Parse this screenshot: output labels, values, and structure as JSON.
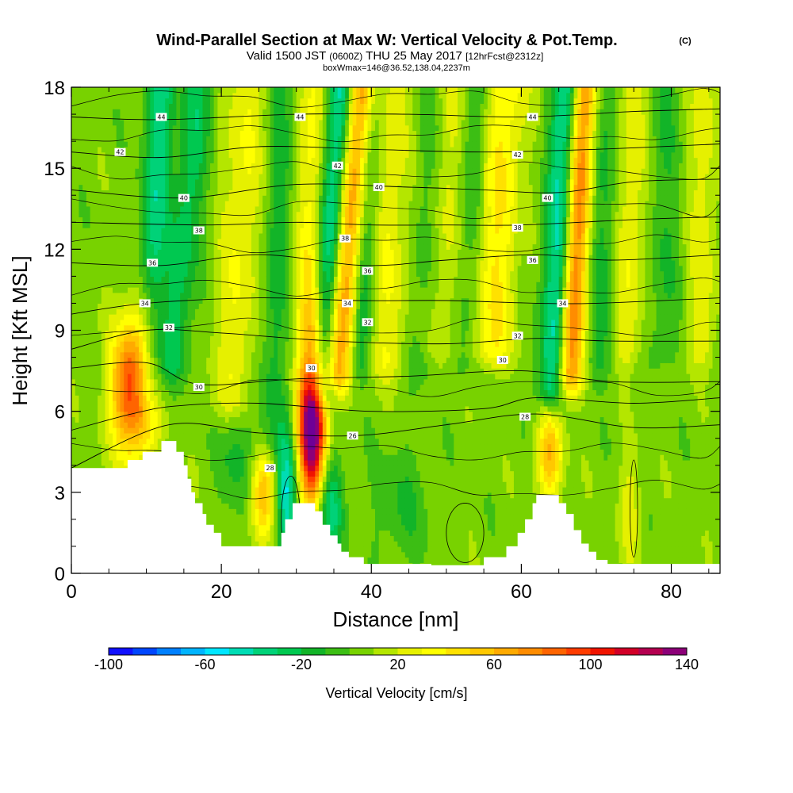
{
  "chart_data": {
    "type": "heatmap",
    "title": "Wind-Parallel Section at Max W: Vertical Velocity & Pot.Temp.",
    "title_mark": "(C)",
    "subtitle": {
      "valid": "Valid 1500 JST",
      "z": "(0600Z)",
      "date": "THU 25 May 2017",
      "fcst": "[12hrFcst@2312z]"
    },
    "subtitle2": "boxWmax=146@36.52,138.04,2237m",
    "xlabel": "Distance [nm]",
    "ylabel": "Height [Kft MSL]",
    "xlim": [
      0,
      86.5
    ],
    "ylim": [
      0,
      18
    ],
    "x_ticks": [
      "0",
      "20",
      "40",
      "60",
      "80"
    ],
    "x_tick_values": [
      0,
      20,
      40,
      60,
      80
    ],
    "y_ticks": [
      "0",
      "3",
      "6",
      "9",
      "12",
      "15",
      "18"
    ],
    "y_tick_values": [
      0,
      3,
      6,
      9,
      12,
      15,
      18
    ],
    "colorbar": {
      "label": "Vertical Velocity [cm/s]",
      "min": -100,
      "max": 140,
      "step": 10,
      "tick_labels": [
        "-100",
        "-60",
        "-20",
        "20",
        "60",
        "100",
        "140"
      ],
      "tick_values": [
        -100,
        -60,
        -20,
        20,
        60,
        100,
        140
      ],
      "colors": [
        "#1010ff",
        "#0046ff",
        "#0080ff",
        "#00b4ff",
        "#00e6ff",
        "#00dcb4",
        "#00d278",
        "#00c850",
        "#12b428",
        "#3cbe14",
        "#78d200",
        "#b4e600",
        "#e6f000",
        "#ffff00",
        "#ffe100",
        "#ffc800",
        "#ffaa00",
        "#ff8c00",
        "#ff6400",
        "#ff3c00",
        "#f01400",
        "#d20028",
        "#b40050",
        "#8c0078",
        "#6e0096"
      ]
    },
    "terrain_kft": [
      [
        0,
        3.9
      ],
      [
        7.5,
        3.9
      ],
      [
        7.5,
        4.2
      ],
      [
        9.5,
        4.2
      ],
      [
        9.5,
        4.5
      ],
      [
        12,
        4.5
      ],
      [
        12,
        4.9
      ],
      [
        14,
        4.9
      ],
      [
        14,
        4.5
      ],
      [
        15,
        4.5
      ],
      [
        15,
        4.0
      ],
      [
        15.5,
        4.0
      ],
      [
        15.5,
        3.5
      ],
      [
        16,
        3.5
      ],
      [
        16,
        3.0
      ],
      [
        16.5,
        3.0
      ],
      [
        16.5,
        2.6
      ],
      [
        17.5,
        2.6
      ],
      [
        17.5,
        2.2
      ],
      [
        18,
        2.2
      ],
      [
        18,
        1.8
      ],
      [
        19,
        1.8
      ],
      [
        19,
        1.5
      ],
      [
        20,
        1.5
      ],
      [
        20,
        1.0
      ],
      [
        28,
        1.0
      ],
      [
        28,
        1.5
      ],
      [
        28.5,
        1.5
      ],
      [
        28.5,
        2.0
      ],
      [
        29.5,
        2.0
      ],
      [
        29.5,
        2.6
      ],
      [
        32.5,
        2.6
      ],
      [
        32.5,
        2.3
      ],
      [
        33.5,
        2.3
      ],
      [
        33.5,
        1.8
      ],
      [
        34.5,
        1.8
      ],
      [
        34.5,
        1.4
      ],
      [
        35.5,
        1.4
      ],
      [
        35.5,
        1.1
      ],
      [
        36,
        1.1
      ],
      [
        36,
        0.8
      ],
      [
        37,
        0.8
      ],
      [
        37,
        0.6
      ],
      [
        39,
        0.6
      ],
      [
        39,
        0.35
      ],
      [
        48,
        0.35
      ],
      [
        48,
        0.3
      ],
      [
        55,
        0.3
      ],
      [
        55,
        0.6
      ],
      [
        58,
        0.6
      ],
      [
        58,
        1.0
      ],
      [
        59.5,
        1.0
      ],
      [
        59.5,
        1.5
      ],
      [
        60.5,
        1.5
      ],
      [
        60.5,
        2.0
      ],
      [
        61.5,
        2.0
      ],
      [
        61.5,
        2.6
      ],
      [
        62,
        2.6
      ],
      [
        62,
        2.9
      ],
      [
        65,
        2.9
      ],
      [
        65,
        2.6
      ],
      [
        66,
        2.6
      ],
      [
        66,
        2.2
      ],
      [
        67,
        2.2
      ],
      [
        67,
        1.6
      ],
      [
        68,
        1.6
      ],
      [
        68,
        1.1
      ],
      [
        69,
        1.1
      ],
      [
        69,
        0.8
      ],
      [
        70,
        0.8
      ],
      [
        70,
        0.5
      ],
      [
        71.5,
        0.5
      ],
      [
        71.5,
        0.35
      ],
      [
        86.5,
        0.35
      ],
      [
        86.5,
        0
      ]
    ],
    "updrafts": [
      {
        "x": 8.2,
        "y": 6.8,
        "sx": 2.0,
        "sy": 1.7,
        "amp": 100
      },
      {
        "x": 32.0,
        "y": 5.2,
        "sx": 1.3,
        "sy": 1.8,
        "amp": 140
      },
      {
        "x": 32.5,
        "y": 8.0,
        "sx": 1.4,
        "sy": 2.0,
        "amp": 40
      },
      {
        "x": 25.5,
        "y": 2.8,
        "sx": 1.1,
        "sy": 1.3,
        "amp": 55
      },
      {
        "x": 63.8,
        "y": 4.4,
        "sx": 1.2,
        "sy": 1.2,
        "amp": 55
      },
      {
        "x": 10.0,
        "y": 9.5,
        "sx": 1.5,
        "sy": 1.2,
        "amp": 25
      },
      {
        "x": 74.5,
        "y": 2.4,
        "sx": 1.0,
        "sy": 1.5,
        "amp": 22
      }
    ],
    "downdrafts": [
      {
        "x": 28.7,
        "y": 3.0,
        "sx": 1.0,
        "sy": 1.6,
        "amp": -60
      },
      {
        "x": 34.5,
        "y": 2.5,
        "sx": 1.2,
        "sy": 1.5,
        "amp": -40
      },
      {
        "x": 22.0,
        "y": 4.5,
        "sx": 1.5,
        "sy": 1.6,
        "amp": -20
      },
      {
        "x": 44.0,
        "y": 2.5,
        "sx": 2.5,
        "sy": 1.5,
        "amp": -15
      }
    ],
    "bands": [
      {
        "x0": 10.0,
        "x1": 12.0,
        "y0": 7.0,
        "y1": 18.0,
        "w": 1.3,
        "amp": -40
      },
      {
        "x0": 13.5,
        "x1": 17.0,
        "y0": 8.0,
        "y1": 18.0,
        "w": 1.5,
        "amp": -30
      },
      {
        "x0": 21.5,
        "x1": 23.5,
        "y0": 6.5,
        "y1": 18.0,
        "w": 2.0,
        "amp": 25
      },
      {
        "x0": 26.5,
        "x1": 28.0,
        "y0": 5.0,
        "y1": 18.0,
        "w": 1.3,
        "amp": -20
      },
      {
        "x0": 31.5,
        "x1": 32.5,
        "y0": 9.5,
        "y1": 18.0,
        "w": 1.3,
        "amp": 30
      },
      {
        "x0": 33.5,
        "x1": 36.0,
        "y0": 7.0,
        "y1": 18.0,
        "w": 1.3,
        "amp": -55
      },
      {
        "x0": 35.5,
        "x1": 38.5,
        "y0": 7.5,
        "y1": 18.0,
        "w": 1.3,
        "amp": 70
      },
      {
        "x0": 38.5,
        "x1": 40.5,
        "y0": 8.0,
        "y1": 18.0,
        "w": 1.2,
        "amp": -30
      },
      {
        "x0": 42.0,
        "x1": 42.5,
        "y0": 8.0,
        "y1": 18.0,
        "w": 2.2,
        "amp": 25
      },
      {
        "x0": 46.5,
        "x1": 48.0,
        "y0": 8.0,
        "y1": 18.0,
        "w": 1.5,
        "amp": -18
      },
      {
        "x0": 49.5,
        "x1": 50.5,
        "y0": 8.5,
        "y1": 18.0,
        "w": 2.0,
        "amp": 20
      },
      {
        "x0": 52.0,
        "x1": 54.0,
        "y0": 8.0,
        "y1": 18.0,
        "w": 1.4,
        "amp": -20
      },
      {
        "x0": 56.0,
        "x1": 58.0,
        "y0": 8.5,
        "y1": 18.0,
        "w": 2.0,
        "amp": 35
      },
      {
        "x0": 64.0,
        "x1": 66.0,
        "y0": 7.0,
        "y1": 18.0,
        "w": 1.3,
        "amp": -50
      },
      {
        "x0": 66.5,
        "x1": 68.5,
        "y0": 7.5,
        "y1": 18.0,
        "w": 1.2,
        "amp": 75
      },
      {
        "x0": 70.5,
        "x1": 71.5,
        "y0": 8.0,
        "y1": 18.0,
        "w": 1.5,
        "amp": -20
      },
      {
        "x0": 74.0,
        "x1": 75.0,
        "y0": 8.5,
        "y1": 18.0,
        "w": 1.5,
        "amp": 25
      },
      {
        "x0": 79.0,
        "x1": 79.0,
        "y0": 8.5,
        "y1": 18.0,
        "w": 1.5,
        "amp": -15
      },
      {
        "x0": 84.0,
        "x1": 84.5,
        "y0": 8.5,
        "y1": 18.0,
        "w": 1.5,
        "amp": 20
      }
    ],
    "isentropes": [
      {
        "label": "26",
        "pts": [
          [
            0,
            3.9
          ],
          [
            13,
            5.5
          ],
          [
            25,
            5.2
          ],
          [
            38,
            5.1
          ],
          [
            50,
            5.5
          ],
          [
            62,
            5.9
          ],
          [
            75,
            5.4
          ],
          [
            86.5,
            5.5
          ]
        ]
      },
      {
        "label": "28",
        "pts": [
          [
            0,
            5.3
          ],
          [
            8,
            5.9
          ],
          [
            14,
            6.2
          ],
          [
            25,
            6.3
          ],
          [
            40,
            6.0
          ],
          [
            55,
            6.1
          ],
          [
            62,
            6.5
          ],
          [
            75,
            6.3
          ],
          [
            86.5,
            6.5
          ]
        ]
      },
      {
        "label": "30",
        "pts": [
          [
            0,
            7.6
          ],
          [
            10,
            7.8
          ],
          [
            17,
            7.0
          ],
          [
            30,
            7.2
          ],
          [
            45,
            7.3
          ],
          [
            60,
            7.5
          ],
          [
            72,
            7.1
          ],
          [
            86.5,
            7.1
          ]
        ]
      },
      {
        "label": "32",
        "pts": [
          [
            0,
            8.3
          ],
          [
            10,
            9.0
          ],
          [
            20,
            8.9
          ],
          [
            35,
            8.6
          ],
          [
            50,
            8.5
          ],
          [
            62,
            8.7
          ],
          [
            72,
            8.6
          ],
          [
            86.5,
            8.6
          ]
        ]
      },
      {
        "label": "34",
        "pts": [
          [
            0,
            9.6
          ],
          [
            10,
            10.0
          ],
          [
            25,
            10.2
          ],
          [
            38,
            10.1
          ],
          [
            50,
            10.1
          ],
          [
            62,
            10.0
          ],
          [
            70,
            10.0
          ],
          [
            86.5,
            10.2
          ]
        ]
      },
      {
        "label": "36",
        "pts": [
          [
            0,
            11.5
          ],
          [
            12,
            11.4
          ],
          [
            25,
            11.8
          ],
          [
            39,
            11.4
          ],
          [
            50,
            11.6
          ],
          [
            62,
            11.8
          ],
          [
            72,
            11.6
          ],
          [
            86.5,
            11.8
          ]
        ]
      },
      {
        "label": "38",
        "pts": [
          [
            0,
            13.0
          ],
          [
            18,
            12.9
          ],
          [
            30,
            13.0
          ],
          [
            40,
            12.9
          ],
          [
            50,
            12.9
          ],
          [
            60,
            12.9
          ],
          [
            75,
            13.1
          ],
          [
            86.5,
            13.2
          ]
        ]
      },
      {
        "label": "40",
        "pts": [
          [
            0,
            14.2
          ],
          [
            15,
            13.9
          ],
          [
            30,
            14.4
          ],
          [
            45,
            14.3
          ],
          [
            55,
            14.2
          ],
          [
            65,
            14.1
          ],
          [
            75,
            14.5
          ],
          [
            86.5,
            14.6
          ]
        ]
      },
      {
        "label": "42",
        "pts": [
          [
            0,
            15.6
          ],
          [
            12,
            15.4
          ],
          [
            25,
            15.8
          ],
          [
            40,
            15.7
          ],
          [
            55,
            15.6
          ],
          [
            70,
            15.7
          ],
          [
            86.5,
            15.9
          ]
        ]
      },
      {
        "label": "44",
        "pts": [
          [
            0,
            16.9
          ],
          [
            12,
            16.8
          ],
          [
            30,
            17.0
          ],
          [
            45,
            17.0
          ],
          [
            60,
            16.9
          ],
          [
            75,
            17.1
          ],
          [
            86.5,
            17.2
          ]
        ]
      }
    ],
    "minor_isentrope_levels": [
      3.1,
      4.5,
      6.9,
      9.1,
      10.6,
      12.2,
      13.5,
      14.9,
      16.3,
      17.6
    ],
    "contour_label_positions": [
      {
        "label": "44",
        "x": 12.0,
        "y": 16.9
      },
      {
        "label": "44",
        "x": 30.5,
        "y": 16.9
      },
      {
        "label": "44",
        "x": 61.5,
        "y": 16.9
      },
      {
        "label": "42",
        "x": 6.5,
        "y": 15.6
      },
      {
        "label": "42",
        "x": 35.5,
        "y": 15.1
      },
      {
        "label": "42",
        "x": 59.5,
        "y": 15.5
      },
      {
        "label": "40",
        "x": 15.0,
        "y": 13.9
      },
      {
        "label": "40",
        "x": 41.0,
        "y": 14.3
      },
      {
        "label": "40",
        "x": 63.5,
        "y": 13.9
      },
      {
        "label": "38",
        "x": 17.0,
        "y": 12.7
      },
      {
        "label": "38",
        "x": 36.5,
        "y": 12.4
      },
      {
        "label": "38",
        "x": 59.5,
        "y": 12.8
      },
      {
        "label": "36",
        "x": 10.8,
        "y": 11.5
      },
      {
        "label": "36",
        "x": 39.5,
        "y": 11.2
      },
      {
        "label": "36",
        "x": 61.5,
        "y": 11.6
      },
      {
        "label": "34",
        "x": 9.8,
        "y": 10.0
      },
      {
        "label": "34",
        "x": 36.8,
        "y": 10.0
      },
      {
        "label": "34",
        "x": 65.5,
        "y": 10.0
      },
      {
        "label": "32",
        "x": 13.0,
        "y": 9.1
      },
      {
        "label": "32",
        "x": 39.5,
        "y": 9.3
      },
      {
        "label": "32",
        "x": 59.5,
        "y": 8.8
      },
      {
        "label": "30",
        "x": 17.0,
        "y": 6.9
      },
      {
        "label": "30",
        "x": 32.0,
        "y": 7.6
      },
      {
        "label": "30",
        "x": 57.5,
        "y": 7.9
      },
      {
        "label": "28",
        "x": 60.5,
        "y": 5.8
      },
      {
        "label": "26",
        "x": 37.5,
        "y": 5.1
      },
      {
        "label": "28",
        "x": 26.5,
        "y": 3.9
      }
    ]
  }
}
